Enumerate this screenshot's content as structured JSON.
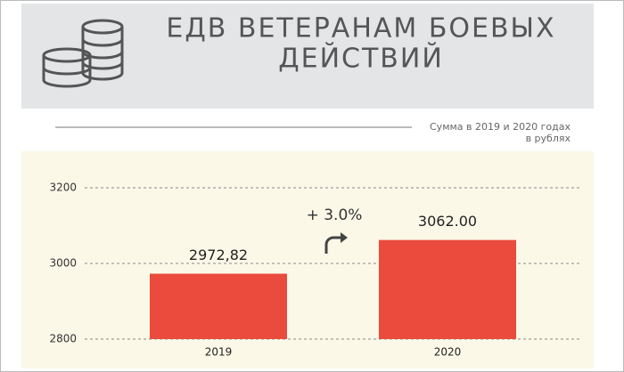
{
  "chart_data": {
    "type": "bar",
    "title": [
      "ЕДВ ВЕТЕРАНАМ БОЕВЫХ",
      "ДЕЙСТВИЙ"
    ],
    "subtitle": [
      "Сумма в 2019 и 2020 годах",
      "в рублях"
    ],
    "categories": [
      "2019",
      "2020"
    ],
    "values": [
      2972.82,
      3062
    ],
    "value_labels": [
      "2972,82",
      "3062.00"
    ],
    "annotation": "+ 3.0%",
    "color": "#ea4b3c",
    "ylim": [
      2800,
      3200
    ],
    "yticks": [
      2800,
      3000,
      3200
    ],
    "grid": true
  }
}
